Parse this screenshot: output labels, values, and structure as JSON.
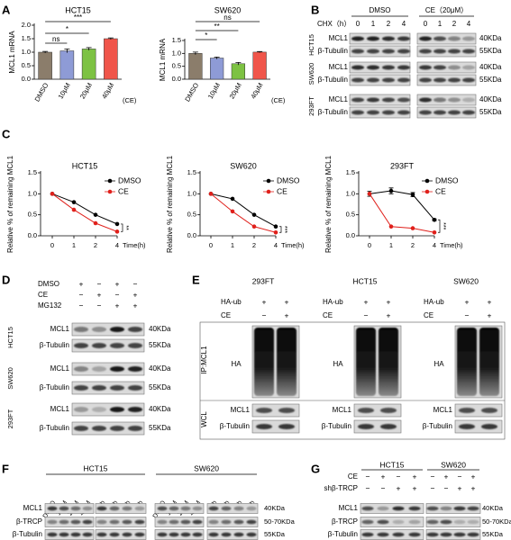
{
  "panel_labels": [
    "A",
    "B",
    "C",
    "D",
    "E",
    "F",
    "G"
  ],
  "chart_data": [
    {
      "type": "bar",
      "title": "HCT15",
      "y_label": "MCL1 mRNA",
      "categories": [
        "DMSO",
        "10μM",
        "20μM",
        "40μM"
      ],
      "annotation": "(CE)",
      "values": [
        1.0,
        1.05,
        1.12,
        1.5
      ],
      "errors": [
        0.03,
        0.07,
        0.05,
        0.03
      ],
      "colors": [
        "#8b7d6b",
        "#8e9bd6",
        "#7dc243",
        "#f0554a"
      ],
      "ylim": [
        0,
        2
      ],
      "yticks": [
        {
          "value": 0,
          "label": "0.0"
        },
        {
          "value": 0.5,
          "label": "0.5"
        },
        {
          "value": 1,
          "label": "1.0"
        },
        {
          "value": 1.5,
          "label": "1.5"
        },
        {
          "value": 2,
          "label": "2.0"
        }
      ],
      "significance": [
        "ns",
        "*",
        "***"
      ]
    },
    {
      "type": "bar",
      "title": "SW620",
      "y_label": "MCL1 mRNA",
      "categories": [
        "DMSO",
        "10μM",
        "20μM",
        "40μM"
      ],
      "annotation": "(CE)",
      "values": [
        1.0,
        0.82,
        0.6,
        1.05
      ],
      "errors": [
        0.05,
        0.04,
        0.05,
        0.02
      ],
      "colors": [
        "#8b7d6b",
        "#8e9bd6",
        "#7dc243",
        "#f0554a"
      ],
      "ylim": [
        0,
        1.5
      ],
      "yticks": [
        {
          "value": 0,
          "label": "0.0"
        },
        {
          "value": 0.5,
          "label": "0.5"
        },
        {
          "value": 1,
          "label": "1.0"
        },
        {
          "value": 1.5,
          "label": "1.5"
        }
      ],
      "significance": [
        "*",
        "**",
        "ns"
      ]
    },
    {
      "type": "line",
      "title": "HCT15",
      "y_label": "Relative % of remaining MCL1",
      "x_label": "Time(h)",
      "categories": [
        "0",
        "1",
        "2",
        "4"
      ],
      "series": [
        {
          "name": "DMSO",
          "color": "#000000",
          "values": [
            1.0,
            0.8,
            0.5,
            0.28
          ]
        },
        {
          "name": "CE",
          "color": "#e0201b",
          "values": [
            1.0,
            0.62,
            0.3,
            0.1
          ]
        }
      ],
      "ylim": [
        0,
        1.5
      ],
      "yticks": [
        {
          "value": 0,
          "label": "0.0"
        },
        {
          "value": 0.5,
          "label": "0.5"
        },
        {
          "value": 1,
          "label": "1.0"
        },
        {
          "value": 1.5,
          "label": "1.5"
        }
      ],
      "significance": "**"
    },
    {
      "type": "line",
      "title": "SW620",
      "y_label": "Relative % of remaining MCL1",
      "x_label": "Time(h)",
      "categories": [
        "0",
        "1",
        "2",
        "4"
      ],
      "series": [
        {
          "name": "DMSO",
          "color": "#000000",
          "values": [
            1.0,
            0.88,
            0.5,
            0.22
          ]
        },
        {
          "name": "CE",
          "color": "#e0201b",
          "values": [
            1.0,
            0.58,
            0.22,
            0.08
          ]
        }
      ],
      "ylim": [
        0,
        1.5
      ],
      "yticks": [
        {
          "value": 0,
          "label": "0.0"
        },
        {
          "value": 0.5,
          "label": "0.5"
        },
        {
          "value": 1,
          "label": "1.0"
        },
        {
          "value": 1.5,
          "label": "1.5"
        }
      ],
      "significance": "***"
    },
    {
      "type": "line",
      "title": "293FT",
      "y_label": "Relative % of remaining MCL1",
      "x_label": "Time(h)",
      "categories": [
        "0",
        "1",
        "2",
        "4"
      ],
      "series": [
        {
          "name": "DMSO",
          "color": "#000000",
          "values": [
            1.0,
            1.07,
            0.98,
            0.38
          ],
          "errors": [
            0.06,
            0.07,
            0.05,
            0.02
          ]
        },
        {
          "name": "CE",
          "color": "#e0201b",
          "values": [
            1.0,
            0.22,
            0.18,
            0.08
          ]
        }
      ],
      "ylim": [
        0,
        1.5
      ],
      "yticks": [
        {
          "value": 0,
          "label": "0.0"
        },
        {
          "value": 0.5,
          "label": "0.5"
        },
        {
          "value": 1,
          "label": "1.0"
        },
        {
          "value": 1.5,
          "label": "1.5"
        }
      ],
      "significance": "***"
    }
  ],
  "blot_B": {
    "header": "CHX（h）",
    "treatments": [
      "DMSO",
      "CE（20μM）"
    ],
    "lanes": [
      "0",
      "1",
      "2",
      "4",
      "0",
      "1",
      "2",
      "4"
    ],
    "groups": [
      {
        "name": "HCT15",
        "rows": [
          {
            "protein": "MCL1",
            "size": "40KDa"
          },
          {
            "protein": "β-Tubulin",
            "size": "55KDa"
          }
        ]
      },
      {
        "name": "SW620",
        "rows": [
          {
            "protein": "MCL1",
            "size": "40KDa"
          },
          {
            "protein": "β-Tubulin",
            "size": "55KDa"
          }
        ]
      },
      {
        "name": "293FT",
        "rows": [
          {
            "protein": "MCL1",
            "size": "40KDa"
          },
          {
            "protein": "β-Tubulin",
            "size": "55KDa"
          }
        ]
      }
    ]
  },
  "blot_D": {
    "conditions": [
      {
        "name": "DMSO",
        "signs": [
          "+",
          "−",
          "+",
          "−"
        ]
      },
      {
        "name": "CE",
        "signs": [
          "−",
          "+",
          "−",
          "+"
        ]
      },
      {
        "name": "MG132",
        "signs": [
          "−",
          "−",
          "+",
          "+"
        ]
      }
    ],
    "groups": [
      {
        "name": "HCT15",
        "rows": [
          {
            "protein": "MCL1",
            "size": "40KDa"
          },
          {
            "protein": "β-Tubulin",
            "size": "55KDa"
          }
        ]
      },
      {
        "name": "SW620",
        "rows": [
          {
            "protein": "MCL1",
            "size": "40KDa"
          },
          {
            "protein": "β-Tubulin",
            "size": "55KDa"
          }
        ]
      },
      {
        "name": "293FT",
        "rows": [
          {
            "protein": "MCL1",
            "size": "40KDa"
          },
          {
            "protein": "β-Tubulin",
            "size": "55KDa"
          }
        ]
      }
    ]
  },
  "blot_E": {
    "ip_label": "IP:MCL1",
    "wcl_label": "WCL",
    "blocks": [
      {
        "title": "293FT",
        "conditions": [
          {
            "name": "HA-ub",
            "signs": [
              "+",
              "+"
            ]
          },
          {
            "name": "CE",
            "signs": [
              "−",
              "+"
            ]
          }
        ],
        "ip_row": "HA",
        "wcl_rows": [
          "MCL1",
          "β-Tubulin"
        ]
      },
      {
        "title": "HCT15",
        "conditions": [
          {
            "name": "HA-ub",
            "signs": [
              "+",
              "+"
            ]
          },
          {
            "name": "CE",
            "signs": [
              "−",
              "+"
            ]
          }
        ],
        "ip_row": "HA",
        "wcl_rows": [
          "MCL1",
          "β-Tubulin"
        ]
      },
      {
        "title": "SW620",
        "conditions": [
          {
            "name": "HA-ub",
            "signs": [
              "+",
              "+"
            ]
          },
          {
            "name": "CE",
            "signs": [
              "−",
              "+"
            ]
          }
        ],
        "ip_row": "HA",
        "wcl_rows": [
          "MCL1",
          "β-Tubulin"
        ]
      }
    ]
  },
  "blot_F": {
    "groups": [
      {
        "name": "HCT15",
        "lanes": [
          "DMSO",
          "10μM",
          "20μM",
          "40μM",
          "0h",
          "12h",
          "24h",
          "48h"
        ]
      },
      {
        "name": "SW620",
        "lanes": [
          "DMSO",
          "10μM",
          "20μM",
          "40μM",
          "0h",
          "12h",
          "24h",
          "48h"
        ]
      }
    ],
    "rows": [
      {
        "protein": "MCL1",
        "size": "40KDa"
      },
      {
        "protein": "β-TRCP",
        "size": "50-70KDa"
      },
      {
        "protein": "β-Tubulin",
        "size": "55KDa"
      }
    ]
  },
  "blot_G": {
    "groups": [
      "HCT15",
      "SW620"
    ],
    "conditions": [
      {
        "name": "CE",
        "signs": [
          "−",
          "+",
          "−",
          "+",
          "−",
          "+",
          "−",
          "+"
        ]
      },
      {
        "name": "shβ-TRCP",
        "signs": [
          "−",
          "−",
          "+",
          "+",
          "−",
          "−",
          "+",
          "+"
        ]
      }
    ],
    "rows": [
      {
        "protein": "MCL1",
        "size": "40KDa"
      },
      {
        "protein": "β-TRCP",
        "size": "50-70KDa"
      },
      {
        "protein": "β-Tubulin",
        "size": "55KDa"
      }
    ]
  }
}
